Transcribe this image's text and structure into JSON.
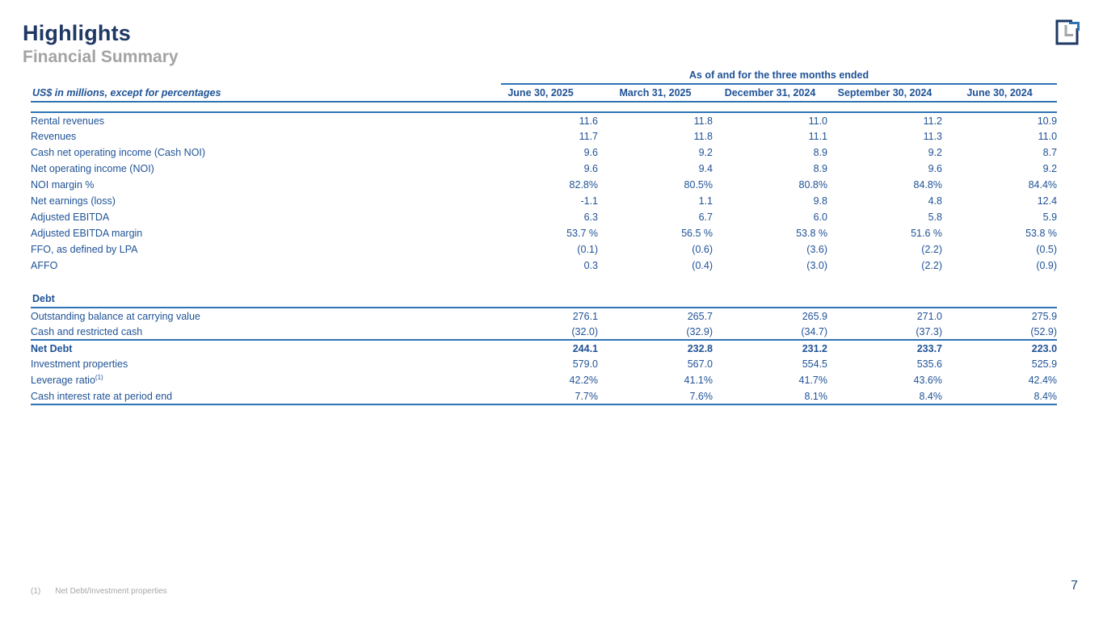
{
  "slide": {
    "title": "Highlights",
    "subtitle": "Financial Summary",
    "page_number": "7",
    "footnote_marker": "(1)",
    "footnote_text": "Net Debt/Investment properties"
  },
  "colors": {
    "title_navy": "#1F3864",
    "subtitle_gray": "#A3A3A3",
    "table_text_blue": "#1F5296",
    "rule_blue": "#2E74B5",
    "logo_navy": "#1F3864",
    "logo_gray": "#A6A6A6",
    "logo_blue": "#2E74B5"
  },
  "icons": {
    "logo": "company-logo-square-l-mark"
  },
  "table": {
    "group_header": "As of and for the three months ended",
    "units_label": "US$ in millions, except for percentages",
    "columns": [
      "June 30, 2025",
      "March 31, 2025",
      "December 31, 2024",
      "September 30, 2024",
      "June 30, 2024"
    ],
    "rows": [
      {
        "label": "Rental revenues",
        "values": [
          "11.6",
          "11.8",
          "11.0",
          "11.2",
          "10.9"
        ]
      },
      {
        "label": "Revenues",
        "values": [
          "11.7",
          "11.8",
          "11.1",
          "11.3",
          "11.0"
        ]
      },
      {
        "label": "Cash net operating income (Cash NOI)",
        "values": [
          "9.6",
          "9.2",
          "8.9",
          "9.2",
          "8.7"
        ]
      },
      {
        "label": "Net operating income (NOI)",
        "values": [
          "9.6",
          "9.4",
          "8.9",
          "9.6",
          "9.2"
        ]
      },
      {
        "label": "NOI margin %",
        "values": [
          "82.8%",
          "80.5%",
          "80.8%",
          "84.8%",
          "84.4%"
        ]
      },
      {
        "label": "Net earnings (loss)",
        "values": [
          "-1.1",
          "1.1",
          "9.8",
          "4.8",
          "12.4"
        ]
      },
      {
        "label": "Adjusted EBITDA",
        "values": [
          "6.3",
          "6.7",
          "6.0",
          "5.8",
          "5.9"
        ]
      },
      {
        "label": "Adjusted EBITDA margin",
        "values": [
          "53.7 %",
          "56.5 %",
          "53.8 %",
          "51.6 %",
          "53.8 %"
        ]
      },
      {
        "label": "FFO, as defined by LPA",
        "values": [
          "(0.1)",
          "(0.6)",
          "(3.6)",
          "(2.2)",
          "(0.5)"
        ]
      },
      {
        "label": "AFFO",
        "values": [
          "0.3",
          "(0.4)",
          "(3.0)",
          "(2.2)",
          "(0.9)"
        ]
      }
    ],
    "debt_section": {
      "header": "Debt",
      "rows": [
        {
          "label": "Outstanding balance at carrying value",
          "values": [
            "276.1",
            "265.7",
            "265.9",
            "271.0",
            "275.9"
          ]
        },
        {
          "label": "Cash and restricted cash",
          "values": [
            "(32.0)",
            "(32.9)",
            "(34.7)",
            "(37.3)",
            "(52.9)"
          ]
        },
        {
          "label": "Net Debt",
          "emphasis": true,
          "values": [
            "244.1",
            "232.8",
            "231.2",
            "233.7",
            "223.0"
          ]
        },
        {
          "label": "Investment properties",
          "values": [
            "579.0",
            "567.0",
            "554.5",
            "535.6",
            "525.9"
          ]
        },
        {
          "label": "Leverage ratio",
          "sup": "(1)",
          "values": [
            "42.2%",
            "41.1%",
            "41.7%",
            "43.6%",
            "42.4%"
          ]
        },
        {
          "label": "Cash interest rate at period end",
          "values": [
            "7.7%",
            "7.6%",
            "8.1%",
            "8.4%",
            "8.4%"
          ]
        }
      ]
    }
  }
}
